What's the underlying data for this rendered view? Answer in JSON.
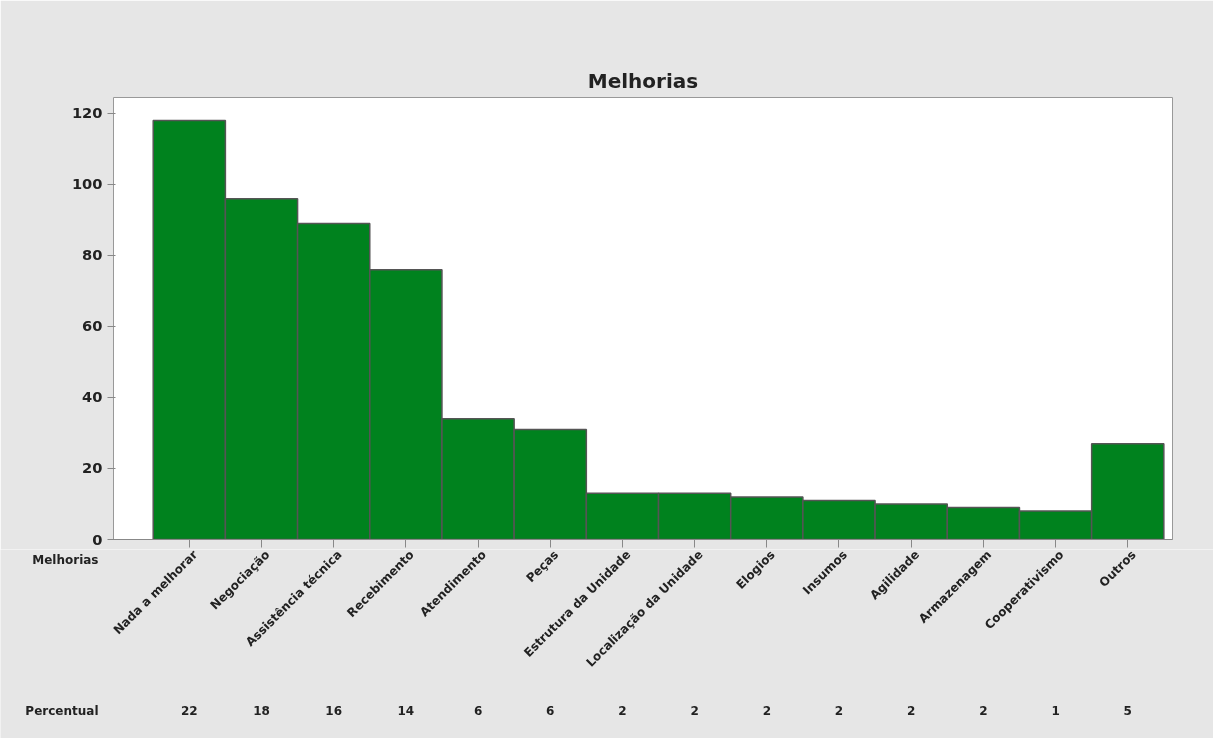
{
  "chart_data": {
    "type": "bar",
    "title": "Melhorias",
    "xlabel": "Melhorias",
    "categories": [
      "Nada a melhorar",
      "Negociação",
      "Assistência técnica",
      "Recebimento",
      "Atendimento",
      "Peças",
      "Estrutura da Unidade",
      "Localização da Unidade",
      "Elogios",
      "Insumos",
      "Agilidade",
      "Armazenagem",
      "Cooperativismo",
      "Outros"
    ],
    "values": [
      118,
      96,
      89,
      76,
      34,
      31,
      13,
      13,
      12,
      11,
      10,
      9,
      8,
      27
    ],
    "annotations": [
      "Percentual",
      "22",
      "18",
      "16",
      "14",
      "6",
      "6",
      "2",
      "2",
      "2",
      "2",
      "2",
      "2",
      "1",
      "5"
    ],
    "color": "#00821e",
    "ylim": [
      0,
      124.5
    ],
    "yticks": [
      0,
      20,
      40,
      60,
      80,
      100,
      120
    ],
    "grid": false
  }
}
